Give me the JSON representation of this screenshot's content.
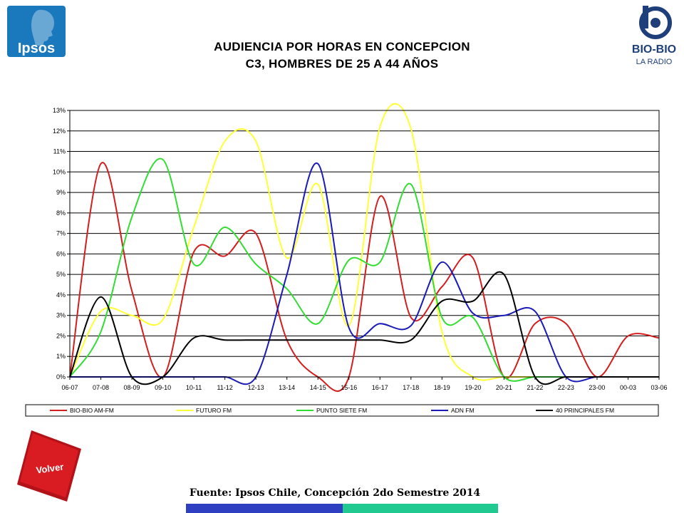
{
  "header": {
    "title_line1": "AUDIENCIA POR HORAS EN CONCEPCION",
    "title_line2": "C3, HOMBRES DE 25 A 44 AÑOS",
    "left_logo": {
      "text": "Ipsos",
      "icon": "ipsos-head-logo",
      "color": "#1a78bd"
    },
    "right_logo": {
      "text1": "BIO-BIO",
      "text2": "LA RADIO",
      "icon": "biobio-b-logo",
      "color": "#1f3f7a"
    }
  },
  "chart_data": {
    "type": "line",
    "categories": [
      "06-07",
      "07-08",
      "08-09",
      "09-10",
      "10-11",
      "11-12",
      "12-13",
      "13-14",
      "14-15",
      "15-16",
      "16-17",
      "17-18",
      "18-19",
      "19-20",
      "20-21",
      "21-22",
      "22-23",
      "23-00",
      "00-03",
      "03-06"
    ],
    "yticks": [
      "0%",
      "1%",
      "2%",
      "3%",
      "4%",
      "5%",
      "6%",
      "7%",
      "8%",
      "9%",
      "10%",
      "11%",
      "12%",
      "13%"
    ],
    "ylim": [
      0,
      13
    ],
    "grid": true,
    "legend_position": "bottom",
    "series": [
      {
        "name": "BIO-BIO AM-FM",
        "color": "#d41e1e",
        "values": [
          0.0,
          10.4,
          4.2,
          0.0,
          6.1,
          5.9,
          7.0,
          1.8,
          0.0,
          0.0,
          8.8,
          2.9,
          4.4,
          5.8,
          0.0,
          2.6,
          2.6,
          0.0,
          2.0,
          1.9
        ]
      },
      {
        "name": "FUTURO FM",
        "color": "#ffff33",
        "values": [
          0.0,
          3.2,
          3.0,
          2.8,
          7.3,
          11.5,
          11.5,
          5.8,
          9.4,
          2.5,
          12.2,
          12.1,
          2.2,
          0.0,
          0.0,
          0.0,
          0.0,
          0.0,
          0.0,
          0.0
        ]
      },
      {
        "name": "PUNTO SIETE FM",
        "color": "#33dd33",
        "values": [
          0.0,
          2.2,
          7.8,
          10.6,
          5.5,
          7.3,
          5.5,
          4.3,
          2.6,
          5.7,
          5.6,
          9.4,
          2.9,
          2.9,
          0.0,
          0.0,
          0.0,
          0.0,
          0.0,
          0.0
        ]
      },
      {
        "name": "ADN FM",
        "color": "#1a1ab8",
        "values": [
          0.0,
          0.0,
          0.0,
          0.0,
          0.0,
          0.0,
          0.0,
          5.0,
          10.4,
          2.4,
          2.6,
          2.5,
          5.6,
          3.1,
          3.0,
          3.2,
          0.0,
          0.0,
          0.0,
          0.0
        ]
      },
      {
        "name": "40 PRINCIPALES FM",
        "color": "#000000",
        "values": [
          0.0,
          3.9,
          0.0,
          0.0,
          1.9,
          1.8,
          1.8,
          1.8,
          1.8,
          1.8,
          1.8,
          1.8,
          3.7,
          3.7,
          5.0,
          0.0,
          0.0,
          0.0,
          0.0,
          0.0
        ]
      }
    ]
  },
  "footer": {
    "volver_label": "Volver",
    "source": "Fuente: Ipsos Chile, Concepción 2do Semestre 2014",
    "bar_colors": [
      "#2f3fc1",
      "#1fc98f"
    ]
  }
}
